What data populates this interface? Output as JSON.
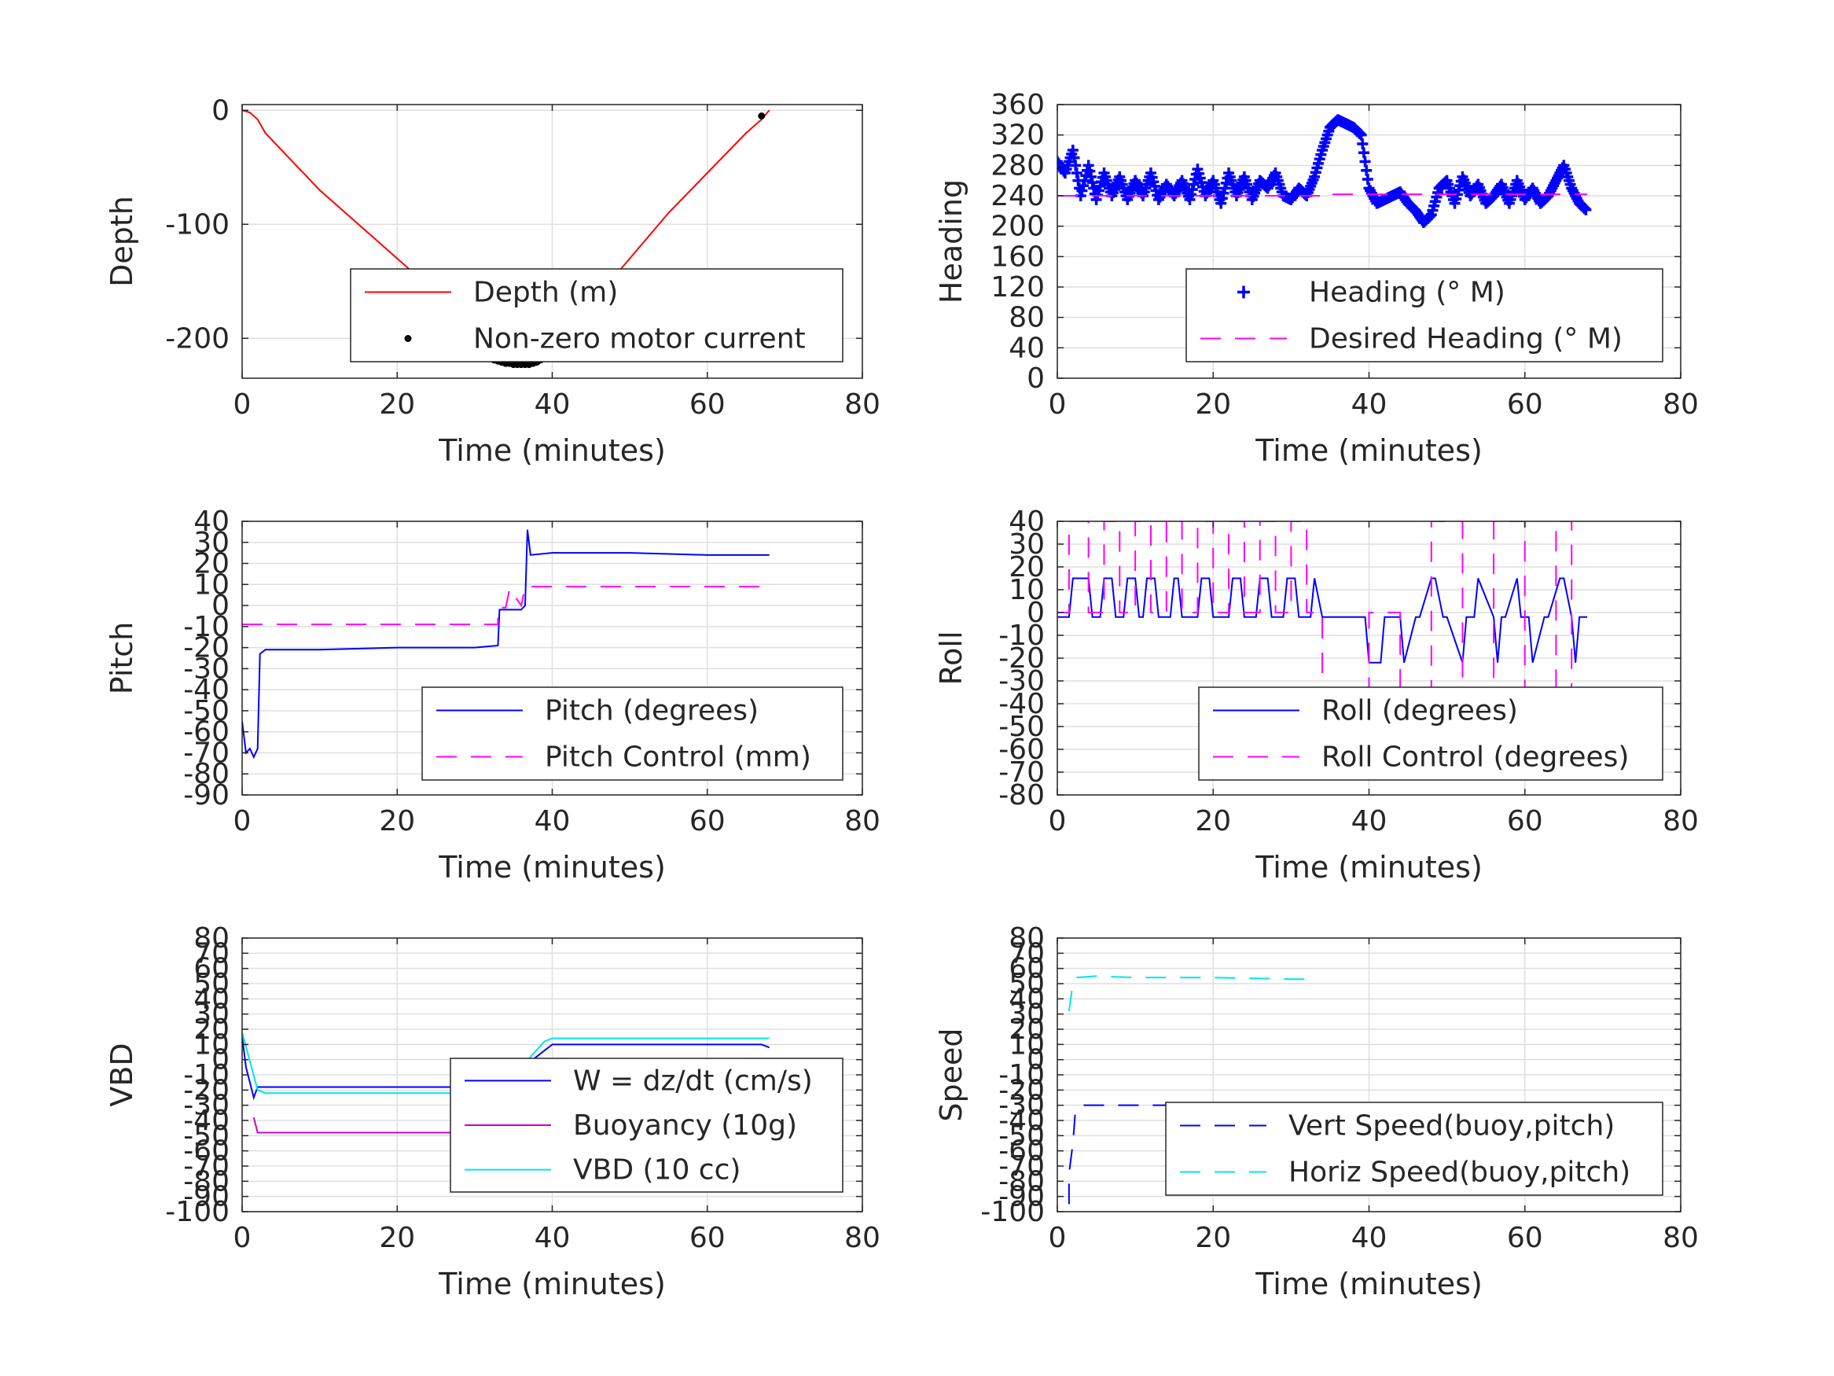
{
  "chart_data": [
    {
      "id": "depth",
      "type": "line",
      "xlabel": "Time (minutes)",
      "ylabel": "Depth",
      "xlim": [
        0,
        80
      ],
      "ylim": [
        -235,
        5
      ],
      "xticks": [
        0,
        20,
        40,
        60,
        80
      ],
      "yticks": [
        -200,
        -100,
        0
      ],
      "grid": true,
      "legend_position": "bottom-right",
      "series": [
        {
          "name": "Depth (m)",
          "style": "line",
          "color": "#ff0000",
          "x": [
            0,
            1,
            2,
            3,
            10,
            20,
            30,
            33,
            35,
            37,
            38,
            40,
            45,
            50,
            55,
            60,
            65,
            67,
            68
          ],
          "y": [
            0,
            -2,
            -8,
            -20,
            -70,
            -130,
            -190,
            -210,
            -222,
            -222,
            -220,
            -205,
            -170,
            -130,
            -90,
            -55,
            -20,
            -8,
            0
          ]
        },
        {
          "name": "Non-zero motor current",
          "style": "dots",
          "color": "#000000",
          "x": [
            32.5,
            33,
            33.5,
            34,
            34.5,
            35,
            35.5,
            36,
            36.5,
            37,
            37.5,
            38,
            38.5,
            39,
            39.5,
            40,
            67
          ],
          "y": [
            -219,
            -220,
            -221,
            -222,
            -222,
            -223,
            -223,
            -223,
            -223,
            -223,
            -222,
            -221,
            -219,
            -217,
            -214,
            -211,
            -5
          ]
        }
      ]
    },
    {
      "id": "heading",
      "type": "scatter",
      "xlabel": "Time (minutes)",
      "ylabel": "Heading",
      "xlim": [
        0,
        80
      ],
      "ylim": [
        0,
        360
      ],
      "xticks": [
        0,
        20,
        40,
        60,
        80
      ],
      "yticks": [
        0,
        40,
        80,
        120,
        160,
        200,
        240,
        280,
        320,
        360
      ],
      "grid": true,
      "legend_position": "bottom-right",
      "series": [
        {
          "name": "Heading (° M)",
          "style": "plus",
          "color": "#0000ff",
          "x": [
            0,
            1,
            2,
            3,
            4,
            5,
            6,
            7,
            8,
            9,
            10,
            11,
            12,
            13,
            14,
            15,
            16,
            17,
            18,
            19,
            20,
            21,
            22,
            23,
            24,
            25,
            26,
            27,
            28,
            29,
            30,
            31,
            32,
            33,
            34,
            35,
            36,
            37,
            38,
            39,
            40,
            41,
            42,
            43,
            44,
            45,
            46,
            47,
            48,
            49,
            50,
            51,
            52,
            53,
            54,
            55,
            56,
            57,
            58,
            59,
            60,
            61,
            62,
            63,
            64,
            65,
            66,
            67,
            68
          ],
          "y": [
            285,
            270,
            300,
            240,
            280,
            235,
            270,
            240,
            265,
            235,
            260,
            240,
            270,
            235,
            255,
            240,
            260,
            235,
            275,
            240,
            260,
            230,
            270,
            240,
            265,
            235,
            260,
            250,
            270,
            240,
            235,
            250,
            240,
            265,
            300,
            330,
            340,
            335,
            330,
            320,
            250,
            230,
            235,
            240,
            245,
            230,
            220,
            205,
            215,
            250,
            260,
            230,
            265,
            240,
            255,
            230,
            240,
            255,
            230,
            260,
            235,
            250,
            230,
            240,
            260,
            280,
            250,
            230,
            220
          ]
        },
        {
          "name": "Desired Heading (° M)",
          "style": "dash",
          "color": "#ff00ff",
          "x": [
            0,
            34,
            34,
            68
          ],
          "y": [
            240,
            240,
            242,
            242
          ]
        }
      ]
    },
    {
      "id": "pitch",
      "type": "line",
      "xlabel": "Time (minutes)",
      "ylabel": "Pitch",
      "xlim": [
        0,
        80
      ],
      "ylim": [
        -90,
        40
      ],
      "xticks": [
        0,
        20,
        40,
        60,
        80
      ],
      "yticks": [
        -90,
        -80,
        -70,
        -60,
        -50,
        -40,
        -30,
        -20,
        -10,
        0,
        10,
        20,
        30,
        40
      ],
      "grid": true,
      "legend_position": "bottom-right",
      "series": [
        {
          "name": "Pitch (degrees)",
          "style": "line",
          "color": "#0000ff",
          "x": [
            0,
            0.5,
            1,
            1.5,
            2,
            2.3,
            3,
            10,
            20,
            30,
            33,
            33.2,
            34,
            36,
            36.5,
            36.8,
            37.2,
            40,
            50,
            60,
            68
          ],
          "y": [
            -55,
            -70,
            -68,
            -72,
            -68,
            -23,
            -21,
            -21,
            -20,
            -20,
            -19,
            -2,
            -2,
            -2,
            0,
            36,
            24,
            25,
            25,
            24,
            24
          ]
        },
        {
          "name": "Pitch Control (mm)",
          "style": "dash",
          "color": "#ff00ff",
          "x": [
            0,
            33,
            33,
            34,
            34.5,
            36,
            36.5,
            68
          ],
          "y": [
            -9,
            -9,
            -1,
            -1,
            8,
            0,
            9,
            9
          ]
        }
      ]
    },
    {
      "id": "roll",
      "type": "line",
      "xlabel": "Time (minutes)",
      "ylabel": "Roll",
      "xlim": [
        0,
        80
      ],
      "ylim": [
        -80,
        40
      ],
      "xticks": [
        0,
        20,
        40,
        60,
        80
      ],
      "yticks": [
        -80,
        -70,
        -60,
        -50,
        -40,
        -30,
        -20,
        -10,
        0,
        10,
        20,
        30,
        40
      ],
      "grid": true,
      "legend_position": "bottom-right",
      "series": [
        {
          "name": "Roll (degrees)",
          "style": "line",
          "color": "#0000ff",
          "x": [
            0,
            1.5,
            2,
            4,
            4.5,
            5.5,
            6,
            7,
            7.5,
            8.5,
            9,
            10,
            10.5,
            11,
            11.5,
            12.5,
            13,
            14.5,
            15,
            15.5,
            16,
            18,
            18.5,
            19.5,
            20,
            22,
            22.5,
            23.5,
            24,
            25.5,
            26,
            27,
            27.5,
            29,
            29.5,
            30.5,
            31,
            32.5,
            33,
            34,
            39.5,
            40,
            41.5,
            42,
            44,
            44.5,
            46,
            46.5,
            48,
            48.5,
            49.5,
            50,
            52,
            52.5,
            53.5,
            54,
            56,
            56.5,
            57,
            57.5,
            59,
            59.5,
            60.5,
            61,
            62.5,
            63,
            64.5,
            65,
            66,
            66.5,
            67,
            68
          ],
          "y": [
            -2,
            -2,
            15,
            15,
            -2,
            -2,
            15,
            15,
            -2,
            -2,
            15,
            15,
            -2,
            -2,
            15,
            15,
            -2,
            -2,
            15,
            15,
            -2,
            -2,
            15,
            15,
            -2,
            -2,
            15,
            15,
            -2,
            -2,
            15,
            15,
            -2,
            -2,
            15,
            15,
            -2,
            -2,
            15,
            -2,
            -2,
            -22,
            -22,
            -2,
            -2,
            -22,
            -2,
            -2,
            15,
            15,
            -2,
            -2,
            -22,
            -2,
            -2,
            15,
            -2,
            -22,
            -2,
            -2,
            15,
            -2,
            -2,
            -22,
            -2,
            -2,
            15,
            15,
            -2,
            -22,
            -2,
            -2
          ]
        },
        {
          "name": "Roll Control (degrees)",
          "style": "dash",
          "color": "#ff00ff",
          "x": [
            0,
            1.5,
            1.5,
            4,
            4,
            6,
            6,
            8,
            8,
            10,
            10,
            12,
            12,
            14,
            14,
            16,
            16,
            18,
            18,
            20,
            20,
            22,
            22,
            24,
            24,
            26,
            26,
            28,
            28,
            30,
            30,
            32,
            32,
            34,
            34,
            40,
            40,
            44,
            44,
            48,
            48,
            52,
            52,
            56,
            56,
            60,
            60,
            64,
            64,
            66,
            66,
            68
          ],
          "y": [
            0,
            0,
            40,
            40,
            0,
            0,
            40,
            40,
            0,
            0,
            40,
            40,
            0,
            0,
            40,
            40,
            0,
            0,
            40,
            40,
            0,
            0,
            40,
            40,
            0,
            0,
            40,
            40,
            0,
            0,
            40,
            40,
            0,
            0,
            -40,
            -40,
            0,
            0,
            -40,
            -40,
            40,
            40,
            -40,
            -40,
            40,
            40,
            -40,
            -40,
            40,
            40,
            -40,
            -40
          ]
        }
      ]
    },
    {
      "id": "vbd",
      "type": "line",
      "xlabel": "Time (minutes)",
      "ylabel": "VBD",
      "xlim": [
        0,
        80
      ],
      "ylim": [
        -100,
        80
      ],
      "xticks": [
        0,
        20,
        40,
        60,
        80
      ],
      "yticks": [
        -100,
        -90,
        -80,
        -70,
        -60,
        -50,
        -40,
        -30,
        -20,
        -10,
        0,
        10,
        20,
        30,
        40,
        50,
        60,
        70,
        80
      ],
      "grid": true,
      "legend_position": "bottom-right",
      "series": [
        {
          "name": "W = dz/dt (cm/s)",
          "style": "line",
          "color": "#0000ff",
          "x": [
            0,
            0.5,
            1,
            1.5,
            2,
            3,
            10,
            20,
            30,
            33,
            35,
            38,
            40,
            45,
            50,
            55,
            60,
            65,
            67,
            68
          ],
          "y": [
            15,
            -5,
            -15,
            -25,
            -18,
            -18,
            -18,
            -18,
            -18,
            -18,
            -10,
            2,
            10,
            10,
            10,
            10,
            10,
            10,
            10,
            8
          ]
        },
        {
          "name": "Buoyancy (10g)",
          "style": "line",
          "color": "#cc00cc",
          "x": [
            1.5,
            2,
            33
          ],
          "y": [
            -38,
            -48,
            -48
          ]
        },
        {
          "name": "VBD (10 cc)",
          "style": "line",
          "color": "#00e5ee",
          "x": [
            0,
            2,
            3,
            33,
            39,
            40,
            68
          ],
          "y": [
            18,
            -20,
            -22,
            -22,
            12,
            14,
            14
          ]
        }
      ]
    },
    {
      "id": "speed",
      "type": "line",
      "xlabel": "Time (minutes)",
      "ylabel": "Speed",
      "xlim": [
        0,
        80
      ],
      "ylim": [
        -100,
        80
      ],
      "xticks": [
        0,
        20,
        40,
        60,
        80
      ],
      "yticks": [
        -100,
        -90,
        -80,
        -70,
        -60,
        -50,
        -40,
        -30,
        -20,
        -10,
        0,
        10,
        20,
        30,
        40,
        50,
        60,
        70,
        80
      ],
      "grid": true,
      "legend_position": "bottom-right",
      "series": [
        {
          "name": "Vert Speed(buoy,pitch)",
          "style": "dash",
          "color": "#0000ff",
          "x": [
            1.5,
            1.5,
            2,
            2.3,
            3,
            10,
            20,
            30,
            33
          ],
          "y": [
            -95,
            -75,
            -55,
            -35,
            -30,
            -30,
            -30,
            -29,
            -29
          ]
        },
        {
          "name": "Horiz Speed(buoy,pitch)",
          "style": "dash",
          "color": "#00e5ee",
          "x": [
            1.5,
            2,
            2.5,
            5,
            10,
            20,
            30,
            33
          ],
          "y": [
            32,
            50,
            54,
            55,
            54,
            54,
            53,
            53
          ]
        }
      ]
    }
  ]
}
